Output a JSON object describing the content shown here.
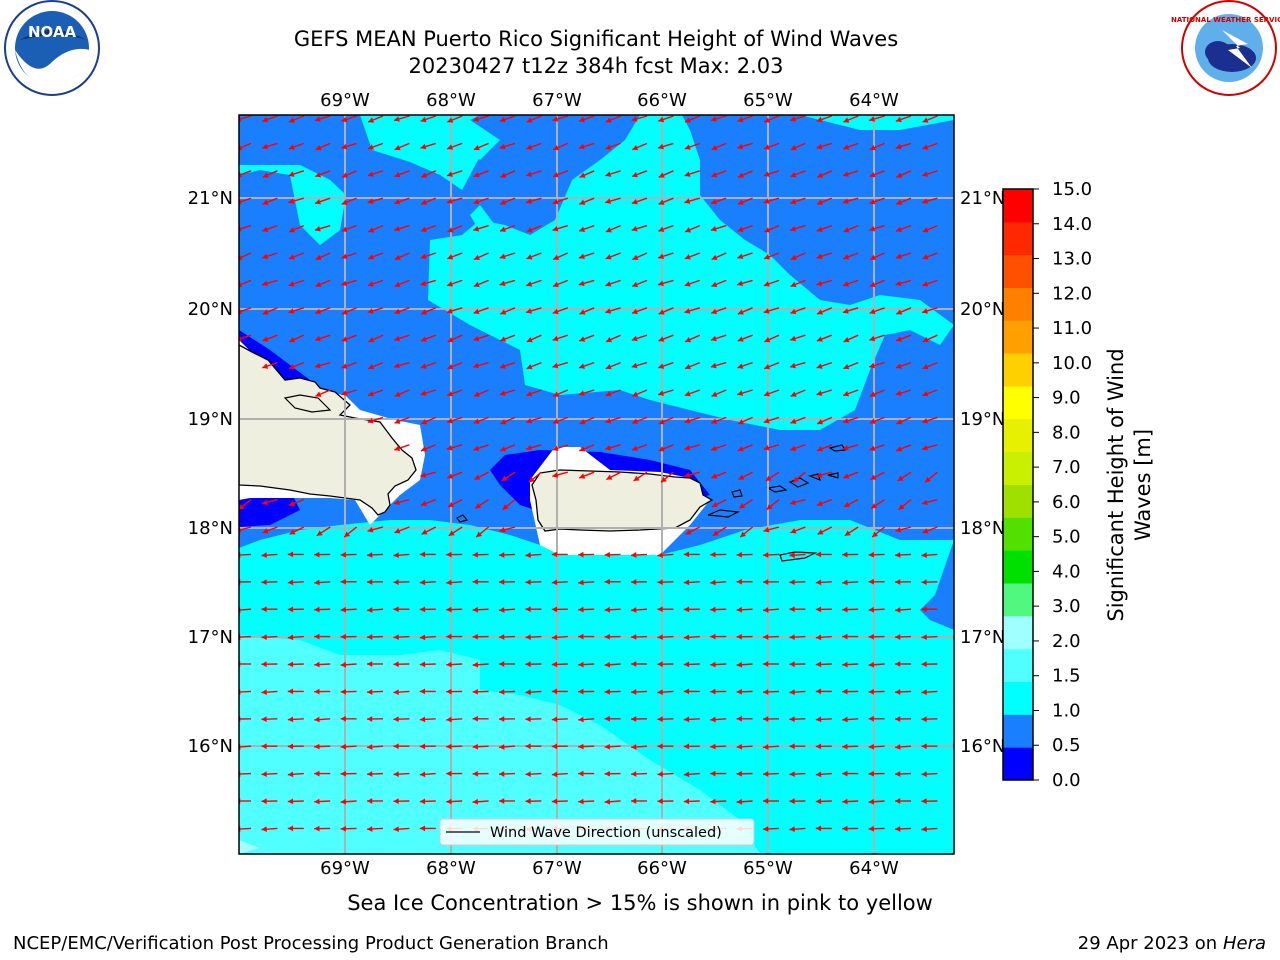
{
  "title": {
    "line1": "GEFS MEAN Puerto Rico Significant Height of Wind Waves",
    "line2": "20230427 t12z 384h fcst   Max: 2.03"
  },
  "map": {
    "lon_labels": [
      "69°W",
      "68°W",
      "67°W",
      "66°W",
      "65°W",
      "64°W"
    ],
    "lat_labels": [
      "21°N",
      "20°N",
      "19°N",
      "18°N",
      "17°N",
      "16°N"
    ],
    "legend_label": "Wind Wave Direction (unscaled)",
    "arrow_color": "#ff0000",
    "land_color": "#efefdf"
  },
  "colorbar": {
    "label_line1": "Significant Height of Wind",
    "label_line2": "Waves [m]",
    "ticks": [
      "0.0",
      "0.5",
      "1.0",
      "1.5",
      "2.0",
      "3.0",
      "4.0",
      "5.0",
      "6.0",
      "7.0",
      "8.0",
      "9.0",
      "10.0",
      "11.0",
      "12.0",
      "13.0",
      "14.0",
      "15.0"
    ],
    "colors": [
      "#0000ff",
      "#1a7fff",
      "#00ffff",
      "#50ffff",
      "#a0ffff",
      "#50f880",
      "#00e000",
      "#52e000",
      "#a0e000",
      "#c8f000",
      "#e6f000",
      "#ffff00",
      "#ffd000",
      "#ffa000",
      "#ff8000",
      "#ff5000",
      "#ff2800",
      "#ff0000"
    ]
  },
  "logos": {
    "noaa_text": "NOAA",
    "nws_text": "NATIONAL WEATHER SERVICE"
  },
  "footer": {
    "note": "Sea Ice Concentration > 15% is shown in pink to yellow",
    "credit": "NCEP/EMC/Verification Post Processing Product Generation Branch",
    "date": "29 Apr 2023 on ",
    "host": "Hera"
  }
}
